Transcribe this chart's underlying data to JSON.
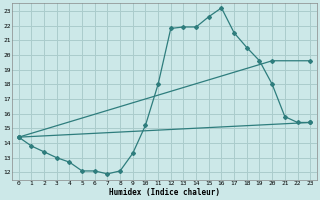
{
  "xlabel": "Humidex (Indice chaleur)",
  "bg_color": "#cce8e8",
  "grid_color": "#aacccc",
  "line_color": "#2e7d7d",
  "xlim": [
    -0.5,
    23.5
  ],
  "ylim": [
    11.5,
    23.5
  ],
  "xticks": [
    0,
    1,
    2,
    3,
    4,
    5,
    6,
    7,
    8,
    9,
    10,
    11,
    12,
    13,
    14,
    15,
    16,
    17,
    18,
    19,
    20,
    21,
    22,
    23
  ],
  "yticks": [
    12,
    13,
    14,
    15,
    16,
    17,
    18,
    19,
    20,
    21,
    22,
    23
  ],
  "line1_x": [
    0,
    1,
    2,
    3,
    4,
    5,
    6,
    7,
    8,
    9,
    10,
    11,
    12,
    13,
    14,
    15,
    16,
    17,
    18,
    19,
    20,
    21,
    22,
    23
  ],
  "line1_y": [
    14.4,
    13.8,
    13.4,
    13.0,
    12.7,
    12.1,
    12.1,
    11.9,
    12.1,
    13.3,
    15.2,
    18.0,
    21.8,
    21.9,
    21.9,
    22.6,
    23.2,
    21.5,
    20.5,
    19.6,
    18.0,
    15.8,
    15.4,
    15.4
  ],
  "line2_x": [
    0,
    20,
    23
  ],
  "line2_y": [
    14.4,
    19.6,
    19.6
  ],
  "line3_x": [
    0,
    23
  ],
  "line3_y": [
    14.4,
    15.4
  ]
}
